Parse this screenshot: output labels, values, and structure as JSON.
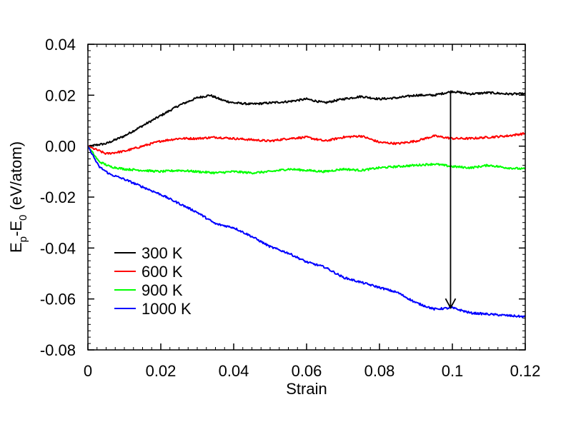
{
  "chart_data": {
    "type": "line",
    "xlabel": "Strain",
    "ylabel": {
      "main": "E",
      "sub1": "p",
      "mid": "-E",
      "sub2": "0",
      "unit": " (eV/atom)"
    },
    "xlim": [
      0,
      0.12
    ],
    "ylim": [
      -0.08,
      0.04
    ],
    "x_ticks": [
      0,
      0.02,
      0.04,
      0.06,
      0.08,
      0.1,
      0.12
    ],
    "x_tick_labels": [
      "0",
      "0.02",
      "0.04",
      "0.06",
      "0.08",
      "0.1",
      "0.12"
    ],
    "y_ticks": [
      -0.08,
      -0.06,
      -0.04,
      -0.02,
      0,
      0.02,
      0.04
    ],
    "y_tick_labels": [
      "-0.08",
      "-0.06",
      "-0.04",
      "-0.02",
      "0.00",
      "0.02",
      "0.04"
    ],
    "grid": false,
    "legend_position": "bottom-left",
    "series": [
      {
        "name": "300 K",
        "color": "#000000",
        "x": [
          0,
          0.005,
          0.01,
          0.015,
          0.02,
          0.025,
          0.03,
          0.0335,
          0.037,
          0.04,
          0.045,
          0.05,
          0.055,
          0.06,
          0.065,
          0.07,
          0.075,
          0.08,
          0.085,
          0.09,
          0.095,
          0.1,
          0.105,
          0.11,
          0.115,
          0.12
        ],
        "y": [
          0,
          0.001,
          0.004,
          0.008,
          0.012,
          0.016,
          0.019,
          0.02,
          0.018,
          0.017,
          0.0165,
          0.017,
          0.0175,
          0.0185,
          0.017,
          0.0185,
          0.0195,
          0.0185,
          0.019,
          0.02,
          0.02,
          0.0215,
          0.0205,
          0.021,
          0.0205,
          0.0205
        ]
      },
      {
        "name": "600 K",
        "color": "#ff0000",
        "x": [
          0,
          0.005,
          0.01,
          0.015,
          0.02,
          0.025,
          0.03,
          0.035,
          0.04,
          0.045,
          0.05,
          0.055,
          0.06,
          0.065,
          0.07,
          0.075,
          0.08,
          0.085,
          0.09,
          0.095,
          0.1,
          0.105,
          0.11,
          0.115,
          0.12
        ],
        "y": [
          0,
          -0.003,
          -0.002,
          0.0,
          0.002,
          0.003,
          0.003,
          0.0035,
          0.003,
          0.0025,
          0.002,
          0.003,
          0.0035,
          0.002,
          0.0035,
          0.004,
          0.0015,
          0.001,
          0.002,
          0.004,
          0.003,
          0.003,
          0.0035,
          0.004,
          0.005
        ]
      },
      {
        "name": "900 K",
        "color": "#00ff00",
        "x": [
          0,
          0.003,
          0.006,
          0.01,
          0.015,
          0.02,
          0.025,
          0.03,
          0.035,
          0.04,
          0.045,
          0.05,
          0.055,
          0.06,
          0.065,
          0.07,
          0.075,
          0.08,
          0.085,
          0.09,
          0.095,
          0.1,
          0.105,
          0.11,
          0.115,
          0.12
        ],
        "y": [
          0,
          -0.006,
          -0.008,
          -0.009,
          -0.0095,
          -0.01,
          -0.0095,
          -0.01,
          -0.0105,
          -0.01,
          -0.0105,
          -0.01,
          -0.009,
          -0.0095,
          -0.01,
          -0.009,
          -0.0095,
          -0.0085,
          -0.008,
          -0.0075,
          -0.007,
          -0.008,
          -0.0085,
          -0.0075,
          -0.0085,
          -0.009
        ]
      },
      {
        "name": "1000 K",
        "color": "#0000ff",
        "x": [
          0,
          0.003,
          0.006,
          0.01,
          0.015,
          0.02,
          0.025,
          0.03,
          0.035,
          0.04,
          0.045,
          0.05,
          0.055,
          0.06,
          0.065,
          0.07,
          0.075,
          0.08,
          0.085,
          0.09,
          0.095,
          0.1,
          0.105,
          0.11,
          0.115,
          0.12
        ],
        "y": [
          0,
          -0.008,
          -0.011,
          -0.013,
          -0.016,
          -0.019,
          -0.0225,
          -0.026,
          -0.0305,
          -0.032,
          -0.0355,
          -0.0395,
          -0.042,
          -0.0455,
          -0.0475,
          -0.0515,
          -0.0535,
          -0.0555,
          -0.0575,
          -0.0615,
          -0.064,
          -0.0635,
          -0.0655,
          -0.066,
          -0.0665,
          -0.067
        ]
      }
    ],
    "annotations": [
      {
        "type": "arrow",
        "x": 0.0995,
        "y_start": 0.0215,
        "y_end": -0.0635,
        "color": "#000000"
      }
    ]
  }
}
